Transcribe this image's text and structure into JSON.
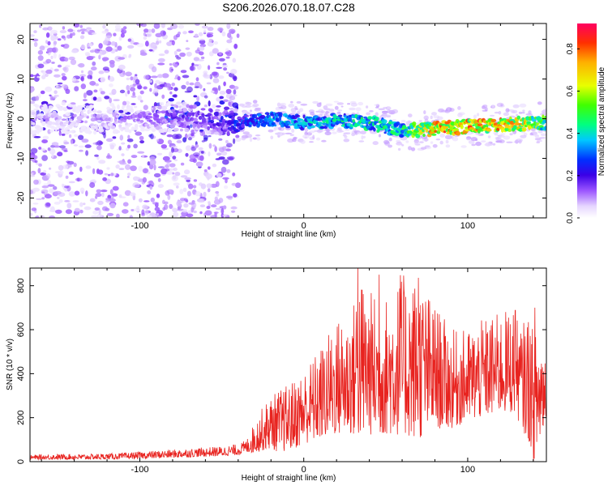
{
  "title": "S206.2026.070.18.07.C28",
  "colors": {
    "snr_line": "#e8231f",
    "axis": "#000000",
    "background": "#ffffff"
  },
  "chart_data": [
    {
      "type": "heatmap",
      "title": "S206.2026.070.18.07.C28",
      "xlabel": "Height of straight line (km)",
      "ylabel": "Frequency (Hz)",
      "xlim": [
        -167,
        148
      ],
      "ylim": [
        -25,
        24
      ],
      "xticks": [
        -100,
        0,
        100
      ],
      "xtick_labels": [
        "-100",
        "0",
        "100"
      ],
      "yticks": [
        -20,
        -10,
        0,
        10,
        20
      ],
      "ytick_labels": [
        "-20",
        "-10",
        "0",
        "10",
        "20"
      ],
      "colorbar": {
        "label": "Normalized spectral amplitude",
        "range": [
          0,
          0.92
        ],
        "ticks": [
          0.0,
          0.2,
          0.4,
          0.6,
          0.8
        ],
        "tick_labels": [
          "0.0",
          "0.2",
          "0.4",
          "0.6",
          "0.8"
        ]
      },
      "ridge": {
        "description_points_x": [
          -167,
          -120,
          -80,
          -60,
          -40,
          -20,
          0,
          20,
          40,
          60,
          80,
          100,
          120,
          148
        ],
        "frequency": [
          0,
          0,
          0.5,
          0,
          -1,
          0,
          -1,
          -0.5,
          -1,
          -3,
          -2.5,
          -2,
          -1.5,
          -1
        ],
        "amplitude": [
          0.1,
          0.12,
          0.18,
          0.22,
          0.3,
          0.4,
          0.42,
          0.45,
          0.5,
          0.5,
          0.85,
          0.85,
          0.85,
          0.6
        ]
      },
      "noise_region_x": [
        -167,
        -40
      ]
    },
    {
      "type": "line",
      "xlabel": "Height of straight line (km)",
      "ylabel": "SNR (10 * v/v)",
      "xlim": [
        -167,
        148
      ],
      "ylim": [
        0,
        880
      ],
      "xticks": [
        -100,
        0,
        100
      ],
      "xtick_labels": [
        "-100",
        "0",
        "100"
      ],
      "yticks": [
        0,
        200,
        400,
        600,
        800
      ],
      "ytick_labels": [
        "0",
        "200",
        "400",
        "600",
        "800"
      ],
      "series": [
        {
          "name": "SNR",
          "x": [
            -167,
            -150,
            -130,
            -110,
            -90,
            -70,
            -50,
            -40,
            -35,
            -30,
            -25,
            -20,
            -15,
            -10,
            -5,
            0,
            10,
            20,
            30,
            33,
            40,
            50,
            60,
            70,
            80,
            90,
            100,
            110,
            120,
            128,
            130,
            133,
            138,
            140,
            145,
            148
          ],
          "envelope_low": [
            10,
            10,
            10,
            12,
            15,
            20,
            25,
            30,
            40,
            40,
            50,
            60,
            40,
            50,
            60,
            80,
            100,
            120,
            120,
            100,
            120,
            120,
            120,
            100,
            150,
            150,
            180,
            200,
            220,
            220,
            200,
            150,
            80,
            0,
            100,
            200
          ],
          "envelope_high": [
            30,
            35,
            35,
            40,
            50,
            60,
            70,
            80,
            100,
            180,
            250,
            300,
            330,
            350,
            380,
            420,
            520,
            650,
            700,
            880,
            780,
            750,
            850,
            840,
            720,
            600,
            600,
            650,
            680,
            700,
            650,
            620,
            700,
            580,
            620,
            500
          ],
          "peaks": [
            {
              "x": 33,
              "y": 880
            },
            {
              "x": 46,
              "y": 850
            },
            {
              "x": 59,
              "y": 848
            },
            {
              "x": 70,
              "y": 836
            },
            {
              "x": 129,
              "y": 688
            },
            {
              "x": 141,
              "y": 700
            }
          ]
        }
      ]
    }
  ]
}
